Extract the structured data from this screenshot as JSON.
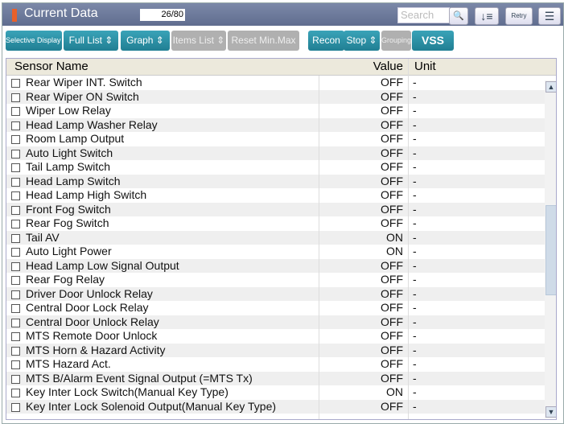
{
  "header": {
    "title": "Current Data",
    "counter": "26/80",
    "search_placeholder": "Search",
    "retry_label": "Retry"
  },
  "toolbar": [
    "Selective Display ⇕",
    "Full List ⇕",
    "Graph ⇕",
    "Items List ⇕",
    "Reset Min.Max",
    "Recon",
    "Stop ⇕",
    "Grouping",
    "VSS"
  ],
  "table": {
    "columns": [
      "Sensor Name",
      "Value",
      "Unit"
    ],
    "rows": [
      [
        "Rear Wiper INT. Switch",
        "OFF",
        "-"
      ],
      [
        "Rear Wiper ON Switch",
        "OFF",
        "-"
      ],
      [
        "Wiper Low Relay",
        "OFF",
        "-"
      ],
      [
        "Head Lamp Washer Relay",
        "OFF",
        "-"
      ],
      [
        "Room Lamp Output",
        "OFF",
        "-"
      ],
      [
        "Auto Light Switch",
        "OFF",
        "-"
      ],
      [
        "Tail Lamp Switch",
        "OFF",
        "-"
      ],
      [
        "Head Lamp Switch",
        "OFF",
        "-"
      ],
      [
        "Head Lamp High Switch",
        "OFF",
        "-"
      ],
      [
        "Front Fog Switch",
        "OFF",
        "-"
      ],
      [
        "Rear Fog Switch",
        "OFF",
        "-"
      ],
      [
        "Tail AV",
        "ON",
        "-"
      ],
      [
        "Auto Light Power",
        "ON",
        "-"
      ],
      [
        "Head Lamp Low Signal Output",
        "OFF",
        "-"
      ],
      [
        "Rear Fog Relay",
        "OFF",
        "-"
      ],
      [
        "Driver Door Unlock Relay",
        "OFF",
        "-"
      ],
      [
        "Central Door Lock Relay",
        "OFF",
        "-"
      ],
      [
        "Central Door Unlock Relay",
        "OFF",
        "-"
      ],
      [
        "MTS Remote Door Unlock",
        "OFF",
        "-"
      ],
      [
        "MTS Horn & Hazard Activity",
        "OFF",
        "-"
      ],
      [
        "MTS Hazard Act.",
        "OFF",
        "-"
      ],
      [
        "MTS B/Alarm Event Signal Output (=MTS Tx)",
        "OFF",
        "-"
      ],
      [
        "Key Inter Lock Switch(Manual Key Type)",
        "ON",
        "-"
      ],
      [
        "Key Inter Lock Solenoid Output(Manual Key Type)",
        "OFF",
        "-"
      ]
    ]
  },
  "scrollbar": {
    "position_fraction": 0.4
  }
}
